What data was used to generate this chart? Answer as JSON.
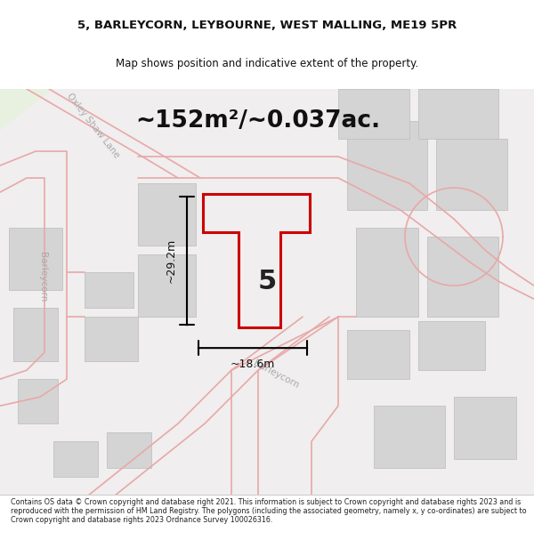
{
  "title_line1": "5, BARLEYCORN, LEYBOURNE, WEST MALLING, ME19 5PR",
  "title_line2": "Map shows position and indicative extent of the property.",
  "area_text": "~152m²/~0.037ac.",
  "dim_vertical": "~29.2m",
  "dim_horizontal": "~18.6m",
  "label_number": "5",
  "road_label1": "Oxley Shaw Lane",
  "road_label2": "Barleycorn",
  "road_label3": "Barleycorn",
  "footer_text": "Contains OS data © Crown copyright and database right 2021. This information is subject to Crown copyright and database rights 2023 and is reproduced with the permission of HM Land Registry. The polygons (including the associated geometry, namely x, y co-ordinates) are subject to Crown copyright and database rights 2023 Ordnance Survey 100026316.",
  "bg_color": "#f5f5f5",
  "map_bg": "#f0eeee",
  "road_color": "#e8a8a8",
  "building_color": "#d8d8d8",
  "property_color": "#cc0000",
  "dim_color": "#000000",
  "text_color": "#333333",
  "light_green": "#e8f0e0"
}
